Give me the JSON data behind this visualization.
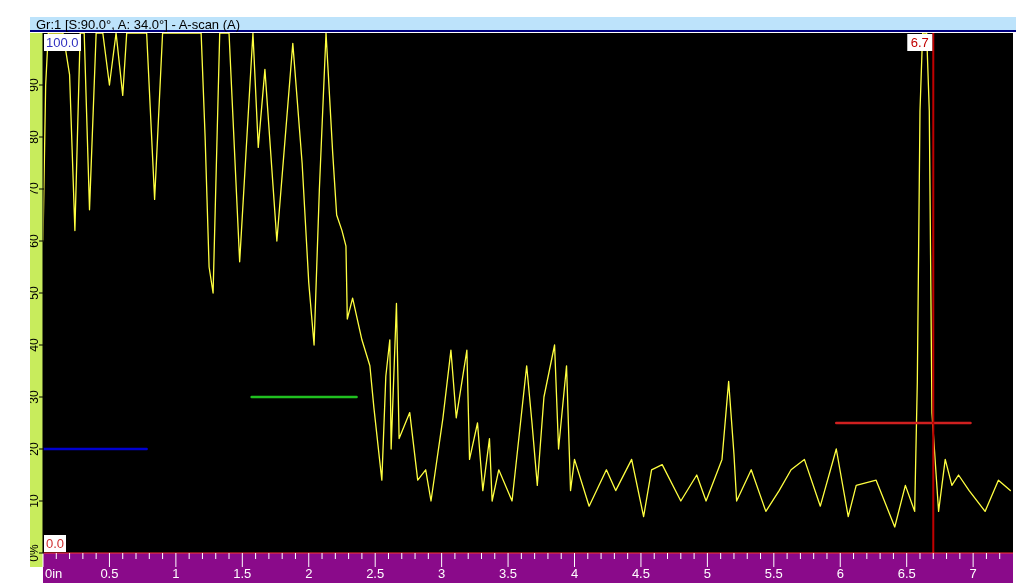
{
  "chart_data": {
    "type": "line",
    "title": "Gr:1 [S:90.0°, A: 34.0°] - A-scan (A)",
    "xlim": [
      0,
      7.3
    ],
    "ylim": [
      0,
      100
    ],
    "xticks": [
      {
        "value": 0,
        "label": "0in"
      },
      {
        "value": 0.1,
        "label": null
      },
      {
        "value": 0.2,
        "label": null
      },
      {
        "value": 0.3,
        "label": null
      },
      {
        "value": 0.4,
        "label": null
      },
      0.5,
      {
        "value": 0.6,
        "label": null
      },
      {
        "value": 0.7,
        "label": null
      },
      {
        "value": 0.8,
        "label": null
      },
      {
        "value": 0.9,
        "label": null
      },
      1,
      {
        "value": 1.1,
        "label": null
      },
      {
        "value": 1.2,
        "label": null
      },
      {
        "value": 1.3,
        "label": null
      },
      {
        "value": 1.4,
        "label": null
      },
      1.5,
      {
        "value": 1.6,
        "label": null
      },
      {
        "value": 1.7,
        "label": null
      },
      {
        "value": 1.8,
        "label": null
      },
      {
        "value": 1.9,
        "label": null
      },
      2,
      {
        "value": 2.1,
        "label": null
      },
      {
        "value": 2.2,
        "label": null
      },
      {
        "value": 2.3,
        "label": null
      },
      {
        "value": 2.4,
        "label": null
      },
      2.5,
      {
        "value": 2.6,
        "label": null
      },
      {
        "value": 2.7,
        "label": null
      },
      {
        "value": 2.8,
        "label": null
      },
      {
        "value": 2.9,
        "label": null
      },
      3,
      {
        "value": 3.1,
        "label": null
      },
      {
        "value": 3.2,
        "label": null
      },
      {
        "value": 3.3,
        "label": null
      },
      {
        "value": 3.4,
        "label": null
      },
      3.5,
      {
        "value": 3.6,
        "label": null
      },
      {
        "value": 3.7,
        "label": null
      },
      {
        "value": 3.8,
        "label": null
      },
      {
        "value": 3.9,
        "label": null
      },
      4,
      {
        "value": 4.1,
        "label": null
      },
      {
        "value": 4.2,
        "label": null
      },
      {
        "value": 4.3,
        "label": null
      },
      {
        "value": 4.4,
        "label": null
      },
      4.5,
      {
        "value": 4.6,
        "label": null
      },
      {
        "value": 4.7,
        "label": null
      },
      {
        "value": 4.8,
        "label": null
      },
      {
        "value": 4.9,
        "label": null
      },
      5,
      {
        "value": 5.1,
        "label": null
      },
      {
        "value": 5.2,
        "label": null
      },
      {
        "value": 5.3,
        "label": null
      },
      {
        "value": 5.4,
        "label": null
      },
      5.5,
      {
        "value": 5.6,
        "label": null
      },
      {
        "value": 5.7,
        "label": null
      },
      {
        "value": 5.8,
        "label": null
      },
      {
        "value": 5.9,
        "label": null
      },
      6,
      {
        "value": 6.1,
        "label": null
      },
      {
        "value": 6.2,
        "label": null
      },
      {
        "value": 6.3,
        "label": null
      },
      {
        "value": 6.4,
        "label": null
      },
      6.5,
      {
        "value": 6.6,
        "label": null
      },
      {
        "value": 6.7,
        "label": null
      },
      {
        "value": 6.8,
        "label": null
      },
      {
        "value": 6.9,
        "label": null
      },
      7,
      {
        "value": 7.1,
        "label": null
      },
      {
        "value": 7.2,
        "label": null
      }
    ],
    "yticks": [
      {
        "value": 0,
        "label": "0%"
      },
      10,
      20,
      30,
      40,
      50,
      60,
      70,
      80,
      90
    ],
    "marker": "none",
    "line_style": "solid",
    "series": [
      {
        "color": "#ffff40",
        "x": [
          0,
          0.02,
          0.04,
          0.15,
          0.2,
          0.24,
          0.28,
          0.31,
          0.35,
          0.4,
          0.45,
          0.5,
          0.55,
          0.6,
          0.63,
          0.78,
          0.84,
          0.9,
          1.19,
          1.22,
          1.25,
          1.28,
          1.31,
          1.33,
          1.4,
          1.48,
          1.58,
          1.62,
          1.67,
          1.76,
          1.88,
          1.95,
          2.0,
          2.04,
          2.08,
          2.13,
          2.18,
          2.21,
          2.25,
          2.28,
          2.29,
          2.33,
          2.4,
          2.46,
          2.49,
          2.55,
          2.58,
          2.61,
          2.62,
          2.66,
          2.68,
          2.76,
          2.82,
          2.88,
          2.92,
          3.01,
          3.07,
          3.11,
          3.19,
          3.21,
          3.27,
          3.31,
          3.36,
          3.38,
          3.43,
          3.53,
          3.64,
          3.68,
          3.72,
          3.77,
          3.85,
          3.88,
          3.94,
          3.97,
          4.0,
          4.11,
          4.24,
          4.31,
          4.43,
          4.52,
          4.58,
          4.66,
          4.8,
          4.92,
          4.99,
          5.11,
          5.16,
          5.2,
          5.22,
          5.33,
          5.44,
          5.54,
          5.63,
          5.73,
          5.85,
          5.97,
          6.06,
          6.12,
          6.27,
          6.41,
          6.49,
          6.56,
          6.58,
          6.6,
          6.62,
          6.65,
          6.67,
          6.69,
          6.74,
          6.79,
          6.84,
          6.89,
          6.97,
          7.09,
          7.19,
          7.28
        ],
        "values": [
          60,
          90,
          100,
          100,
          92,
          62,
          100,
          100,
          66,
          100,
          100,
          90,
          100,
          88,
          100,
          100,
          68,
          100,
          100,
          80,
          55,
          50,
          80,
          100,
          100,
          56,
          100,
          78,
          93,
          60,
          98,
          75,
          52,
          40,
          70,
          100,
          77,
          65,
          62,
          59,
          45,
          49,
          41,
          36,
          28,
          14,
          34,
          41,
          20,
          48,
          22,
          27,
          14,
          16,
          10,
          26,
          39,
          26,
          39,
          18,
          25,
          12,
          22,
          10,
          16,
          10,
          36,
          25,
          13,
          30,
          40,
          20,
          36,
          12,
          18,
          9,
          16,
          12,
          18,
          7,
          16,
          17,
          10,
          15,
          10,
          18,
          33,
          19,
          10,
          16,
          8,
          12,
          16,
          18,
          9,
          20,
          7,
          13,
          14,
          5,
          13,
          8,
          33,
          85,
          100,
          100,
          85,
          27,
          8,
          18,
          13,
          15,
          12,
          8,
          14,
          12
        ]
      },
      {
        "color": "#0000d0",
        "x": [
          0,
          0.78
        ],
        "values": [
          20,
          20
        ]
      },
      {
        "color": "#20c020",
        "x": [
          1.57,
          2.36
        ],
        "values": [
          30,
          30
        ]
      },
      {
        "color": "#d02020",
        "x": [
          5.97,
          6.98
        ],
        "values": [
          25,
          25
        ]
      }
    ],
    "ref_lines": [
      {
        "axis": "x",
        "value": 6.7,
        "label": "6.7",
        "color": "#c00000"
      }
    ],
    "annotations": [
      "100.0",
      "0.0"
    ]
  }
}
